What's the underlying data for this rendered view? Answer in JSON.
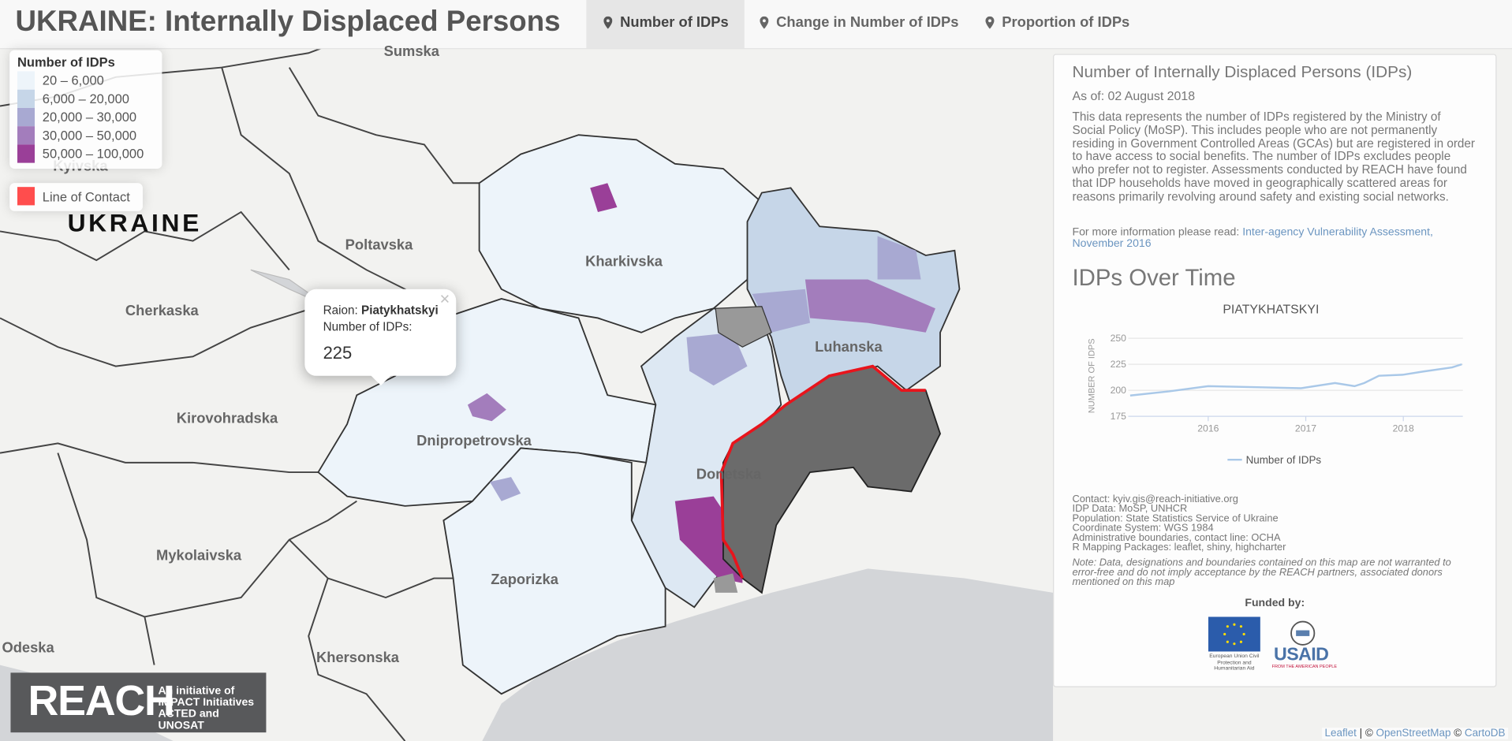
{
  "header": {
    "title": "UKRAINE: Internally Displaced Persons",
    "tabs": [
      "Number of IDPs",
      "Change in Number of IDPs",
      "Proportion of IDPs"
    ]
  },
  "legend": {
    "title": "Number of IDPs",
    "items": [
      {
        "label": "20 – 6,000",
        "color": "#edf4fa"
      },
      {
        "label": "6,000 – 20,000",
        "color": "#c6d6e8"
      },
      {
        "label": "20,000 – 30,000",
        "color": "#a8a9d2"
      },
      {
        "label": "30,000 – 50,000",
        "color": "#a37dbc"
      },
      {
        "label": "50,000 – 100,000",
        "color": "#9a3f98"
      }
    ],
    "contact": {
      "label": "Line of Contact",
      "color": "#ff4d4d"
    }
  },
  "map": {
    "country": "UKRAINE",
    "labels": [
      "Sumska",
      "Kyivska",
      "Poltavska",
      "Cherkaska",
      "Kharkivska",
      "Luhanska",
      "Kirovohradska",
      "Dnipropetrovska",
      "Donetska",
      "Mykolaivska",
      "Zaporizka",
      "Khersonska",
      "Odeska"
    ]
  },
  "popup": {
    "raion_label": "Raion:",
    "raion": "Piatykhatskyi",
    "idps_label": "Number of IDPs:",
    "idps": "225",
    "close": "×"
  },
  "info_panel": {
    "heading": "Number of Internally Displaced Persons (IDPs)",
    "as_of": "As of: 02 August 2018",
    "description": "This data represents the number of IDPs registered by the Ministry of Social Policy (MoSP). This includes people who are not permanently residing in Government Controlled Areas (GCAs) but are registered in order to have access to social benefits. The number of IDPs excludes people who prefer not to register. Assessments conducted by REACH have found that IDP households have moved in geographically scattered areas for reasons primarily revolving around safety and existing social networks.",
    "more_info": "For more information please read:",
    "more_link": "Inter-agency Vulnerability Assessment, November 2016",
    "chart_heading": "IDPs Over Time",
    "credits": [
      "Contact: kyiv.gis@reach-initiative.org",
      "IDP Data: MoSP, UNHCR",
      "Population: State Statistics Service of Ukraine",
      "Coordinate System: WGS 1984",
      "Administrative boundaries, contact line: OCHA",
      "R Mapping Packages: leaflet, shiny, highcharter"
    ],
    "note": "Note: Data, designations and boundaries contained on this map are not warranted to error-free and do not imply acceptance by the REACH partners, associated donors mentioned on this map",
    "funded_by": "Funded by:",
    "eu_text": "European Union Civil Protection and Humanitarian Aid",
    "usaid": "USAID",
    "usaid_tag": "FROM THE AMERICAN PEOPLE"
  },
  "chart_data": {
    "type": "line",
    "title": "PIATYKHATSKYI",
    "y_label": "NUMBER OF IDPS",
    "x": [
      2015.2,
      2015.6,
      2016.0,
      2016.5,
      2016.95,
      2017.3,
      2017.5,
      2017.6,
      2017.75,
      2018.0,
      2018.2,
      2018.5,
      2018.6
    ],
    "series": [
      {
        "name": "Number of IDPs",
        "color": "#a9c8e8",
        "values": [
          195,
          199,
          204,
          203,
          202,
          207,
          204,
          207,
          214,
          215,
          218,
          222,
          225
        ]
      }
    ],
    "xlim": [
      2015.18,
      2018.61
    ],
    "ylim": [
      175,
      250
    ],
    "xticks": [
      2016,
      2017,
      2018
    ],
    "yticks": [
      175,
      200,
      225,
      250
    ],
    "grid": true
  },
  "logo": {
    "name": "REACH",
    "tagline": [
      "An initiative of",
      "IMPACT Initiatives",
      "ACTED and UNOSAT"
    ]
  },
  "attribution": [
    "Leaflet",
    "| ©",
    "OpenStreetMap",
    "©",
    "CartoDB"
  ]
}
